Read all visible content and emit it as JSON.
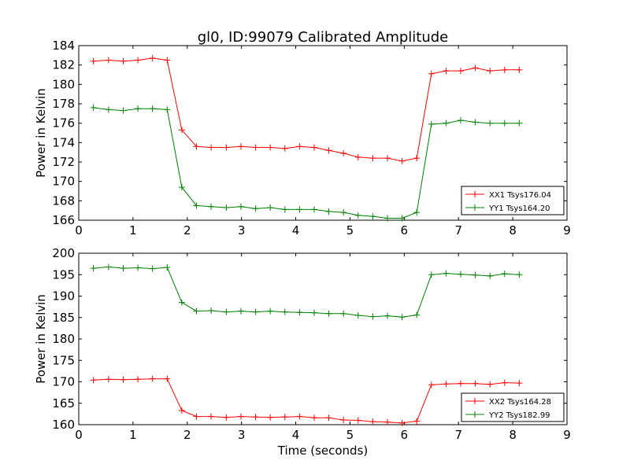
{
  "figure": {
    "title": "gl0, ID:99079 Calibrated Amplitude"
  },
  "chart_data": [
    {
      "type": "line",
      "title": "gl0, ID:99079 Calibrated Amplitude",
      "xlabel": "",
      "ylabel": "Power in Kelvin",
      "xlim": [
        0,
        9
      ],
      "ylim": [
        166,
        184
      ],
      "xticks": [
        "0",
        "1",
        "2",
        "3",
        "4",
        "5",
        "6",
        "7",
        "8",
        "9"
      ],
      "yticks": [
        "166",
        "168",
        "170",
        "172",
        "174",
        "176",
        "178",
        "180",
        "182",
        "184"
      ],
      "grid": false,
      "legend_position": "lower-right",
      "x": [
        0.27,
        0.55,
        0.82,
        1.09,
        1.36,
        1.63,
        1.9,
        2.17,
        2.44,
        2.72,
        2.99,
        3.26,
        3.53,
        3.8,
        4.07,
        4.34,
        4.61,
        4.88,
        5.15,
        5.42,
        5.69,
        5.96,
        6.23,
        6.5,
        6.77,
        7.04,
        7.31,
        7.58,
        7.85,
        8.12
      ],
      "series": [
        {
          "name": "XX1 Tsys176.04",
          "color": "#ff0000",
          "values": [
            182.4,
            182.5,
            182.4,
            182.5,
            182.7,
            182.5,
            175.3,
            173.6,
            173.5,
            173.5,
            173.6,
            173.5,
            173.5,
            173.4,
            173.6,
            173.5,
            173.2,
            172.9,
            172.5,
            172.4,
            172.4,
            172.1,
            172.4,
            181.1,
            181.4,
            181.4,
            181.7,
            181.4,
            181.5,
            181.5
          ]
        },
        {
          "name": "YY1 Tsys164.20",
          "color": "#008000",
          "values": [
            177.6,
            177.4,
            177.3,
            177.5,
            177.5,
            177.4,
            169.4,
            167.5,
            167.4,
            167.3,
            167.4,
            167.2,
            167.3,
            167.1,
            167.1,
            167.1,
            166.9,
            166.8,
            166.5,
            166.4,
            166.2,
            166.2,
            166.8,
            175.9,
            176.0,
            176.3,
            176.1,
            176.0,
            176.0,
            176.0
          ]
        }
      ]
    },
    {
      "type": "line",
      "title": "",
      "xlabel": "Time (seconds)",
      "ylabel": "Power in Kelvin",
      "xlim": [
        0,
        9
      ],
      "ylim": [
        160,
        200
      ],
      "xticks": [
        "0",
        "1",
        "2",
        "3",
        "4",
        "5",
        "6",
        "7",
        "8",
        "9"
      ],
      "yticks": [
        "160",
        "165",
        "170",
        "175",
        "180",
        "185",
        "190",
        "195",
        "200"
      ],
      "grid": false,
      "legend_position": "lower-right",
      "x": [
        0.27,
        0.55,
        0.82,
        1.09,
        1.36,
        1.63,
        1.9,
        2.17,
        2.44,
        2.72,
        2.99,
        3.26,
        3.53,
        3.8,
        4.07,
        4.34,
        4.61,
        4.88,
        5.15,
        5.42,
        5.69,
        5.96,
        6.23,
        6.5,
        6.77,
        7.04,
        7.31,
        7.58,
        7.85,
        8.12
      ],
      "series": [
        {
          "name": "XX2 Tsys164.28",
          "color": "#ff0000",
          "values": [
            170.4,
            170.6,
            170.5,
            170.6,
            170.7,
            170.7,
            163.3,
            161.9,
            161.9,
            161.7,
            161.9,
            161.8,
            161.7,
            161.8,
            161.9,
            161.6,
            161.6,
            161.1,
            161.0,
            160.7,
            160.6,
            160.4,
            160.8,
            169.3,
            169.5,
            169.6,
            169.6,
            169.4,
            169.8,
            169.7
          ]
        },
        {
          "name": "YY2 Tsys182.99",
          "color": "#008000",
          "values": [
            196.5,
            196.8,
            196.5,
            196.6,
            196.4,
            196.7,
            188.5,
            186.5,
            186.6,
            186.3,
            186.5,
            186.3,
            186.5,
            186.3,
            186.2,
            186.1,
            185.9,
            185.9,
            185.5,
            185.2,
            185.4,
            185.1,
            185.6,
            195.0,
            195.3,
            195.1,
            194.9,
            194.7,
            195.2,
            195.0
          ]
        }
      ]
    }
  ]
}
